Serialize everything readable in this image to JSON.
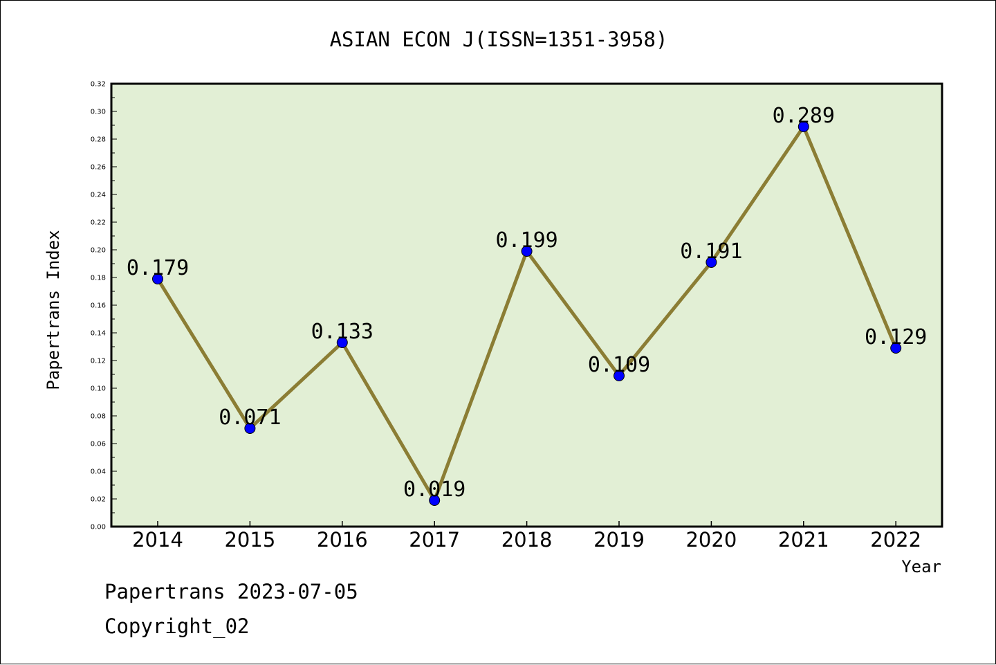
{
  "chart_data": {
    "type": "line",
    "title": "ASIAN ECON J(ISSN=1351-3958)",
    "xlabel": "Year",
    "ylabel": "Papertrans Index",
    "categories": [
      "2014",
      "2015",
      "2016",
      "2017",
      "2018",
      "2019",
      "2020",
      "2021",
      "2022"
    ],
    "series": [
      {
        "values": [
          0.179,
          0.071,
          0.133,
          0.019,
          0.199,
          0.109,
          0.191,
          0.289,
          0.129
        ]
      }
    ],
    "data_labels": [
      "0.179",
      "0.071",
      "0.133",
      "0.019",
      "0.199",
      "0.109",
      "0.191",
      "0.289",
      "0.129"
    ],
    "ylim": [
      0,
      0.32
    ],
    "yticks": [
      "0.00",
      "0.02",
      "0.04",
      "0.06",
      "0.08",
      "0.10",
      "0.12",
      "0.14",
      "0.16",
      "0.18",
      "0.20",
      "0.22",
      "0.24",
      "0.26",
      "0.28",
      "0.30",
      "0.32"
    ],
    "grid": false,
    "colors": {
      "plot_background": "#e2efd5",
      "line": "#8b7d34",
      "marker": "#0000ff"
    }
  },
  "footer": {
    "line1": "Papertrans 2023-07-05",
    "line2": "Copyright_02"
  }
}
